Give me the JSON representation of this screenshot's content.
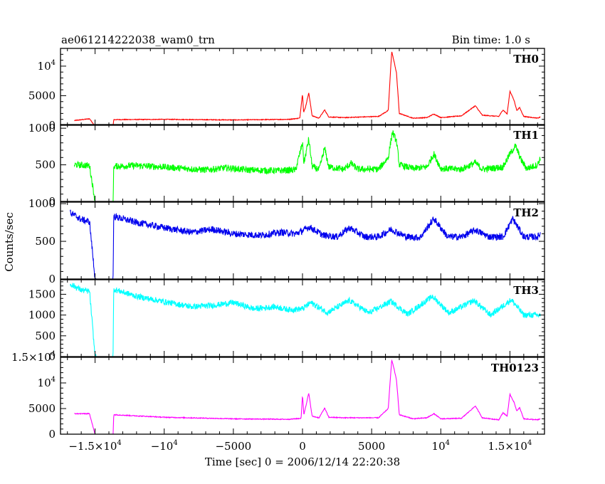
{
  "title_left": "ae061214222038_wam0_trn",
  "title_right": "Bin time: 1.0 s",
  "ylabel": "Counts/sec",
  "xlabel": "Time [sec] 0 = 2006/12/14 22:20:38",
  "chart_data": {
    "type": "line",
    "xlim": [
      -17500,
      17500
    ],
    "x_ticks": [
      {
        "value": -15000,
        "label": "−1.5×10",
        "exp": "4"
      },
      {
        "value": -10000,
        "label": "−10",
        "exp": "4"
      },
      {
        "value": -5000,
        "label": "−5000",
        "exp": ""
      },
      {
        "value": 0,
        "label": "0",
        "exp": ""
      },
      {
        "value": 5000,
        "label": "5000",
        "exp": ""
      },
      {
        "value": 10000,
        "label": "10",
        "exp": "4"
      },
      {
        "value": 15000,
        "label": "1.5×10",
        "exp": "4"
      }
    ],
    "panels": [
      {
        "name": "TH0",
        "color": "#ff0000",
        "ylim": [
          0,
          13000
        ],
        "noise": 60,
        "y_ticks": [
          {
            "value": 0,
            "label": "0",
            "exp": ""
          },
          {
            "value": 5000,
            "label": "5000",
            "exp": ""
          },
          {
            "value": 10000,
            "label": "10",
            "exp": "4"
          }
        ],
        "points": [
          [
            -16500,
            800
          ],
          [
            -15400,
            1100
          ],
          [
            -15000,
            -120
          ],
          [
            -14600,
            -120
          ],
          [
            -13700,
            -120
          ],
          [
            -13650,
            950
          ],
          [
            -10000,
            1000
          ],
          [
            -5000,
            900
          ],
          [
            -1000,
            1000
          ],
          [
            -200,
            1200
          ],
          [
            0,
            5300
          ],
          [
            80,
            2200
          ],
          [
            200,
            2900
          ],
          [
            450,
            5500
          ],
          [
            700,
            1600
          ],
          [
            1200,
            1200
          ],
          [
            1600,
            2600
          ],
          [
            1900,
            1400
          ],
          [
            3000,
            1300
          ],
          [
            5500,
            1500
          ],
          [
            6200,
            2500
          ],
          [
            6450,
            12500
          ],
          [
            6600,
            11000
          ],
          [
            6800,
            8800
          ],
          [
            7000,
            2000
          ],
          [
            8000,
            1200
          ],
          [
            9000,
            1300
          ],
          [
            9500,
            1900
          ],
          [
            10000,
            1300
          ],
          [
            11500,
            1600
          ],
          [
            12500,
            3300
          ],
          [
            13000,
            1700
          ],
          [
            14200,
            1500
          ],
          [
            14500,
            2600
          ],
          [
            14800,
            1900
          ],
          [
            15000,
            5800
          ],
          [
            15300,
            4200
          ],
          [
            15500,
            2500
          ],
          [
            15700,
            3000
          ],
          [
            16000,
            1500
          ],
          [
            17000,
            1200
          ],
          [
            17200,
            1400
          ]
        ]
      },
      {
        "name": "TH1",
        "color": "#00ff00",
        "ylim": [
          0,
          1050
        ],
        "noise": 45,
        "y_ticks": [
          {
            "value": 0,
            "label": "0",
            "exp": ""
          },
          {
            "value": 500,
            "label": "500",
            "exp": ""
          },
          {
            "value": 1000,
            "label": "1000",
            "exp": ""
          }
        ],
        "points": [
          [
            -16500,
            500
          ],
          [
            -15400,
            490
          ],
          [
            -15000,
            0
          ],
          [
            -14600,
            0
          ],
          [
            -13700,
            0
          ],
          [
            -13650,
            480
          ],
          [
            -12000,
            490
          ],
          [
            -10000,
            470
          ],
          [
            -7000,
            430
          ],
          [
            -5500,
            460
          ],
          [
            -4000,
            430
          ],
          [
            -2000,
            420
          ],
          [
            -500,
            430
          ],
          [
            0,
            800
          ],
          [
            100,
            520
          ],
          [
            450,
            850
          ],
          [
            700,
            480
          ],
          [
            1200,
            430
          ],
          [
            1600,
            730
          ],
          [
            1900,
            470
          ],
          [
            3000,
            440
          ],
          [
            3500,
            520
          ],
          [
            4000,
            440
          ],
          [
            5500,
            440
          ],
          [
            6200,
            600
          ],
          [
            6500,
            950
          ],
          [
            6800,
            820
          ],
          [
            7000,
            500
          ],
          [
            8000,
            450
          ],
          [
            9000,
            470
          ],
          [
            9500,
            650
          ],
          [
            10000,
            450
          ],
          [
            11500,
            440
          ],
          [
            12500,
            530
          ],
          [
            13000,
            440
          ],
          [
            14500,
            470
          ],
          [
            15000,
            650
          ],
          [
            15400,
            760
          ],
          [
            15800,
            570
          ],
          [
            16200,
            450
          ],
          [
            17000,
            500
          ],
          [
            17200,
            600
          ]
        ]
      },
      {
        "name": "TH2",
        "color": "#0000ee",
        "ylim": [
          0,
          1020
        ],
        "noise": 45,
        "y_ticks": [
          {
            "value": 0,
            "label": "0",
            "exp": ""
          },
          {
            "value": 500,
            "label": "500",
            "exp": ""
          },
          {
            "value": 1000,
            "label": "1000",
            "exp": ""
          }
        ],
        "points": [
          [
            -16800,
            880
          ],
          [
            -16000,
            790
          ],
          [
            -15400,
            760
          ],
          [
            -15000,
            0
          ],
          [
            -14600,
            0
          ],
          [
            -13700,
            0
          ],
          [
            -13650,
            830
          ],
          [
            -12000,
            750
          ],
          [
            -10000,
            680
          ],
          [
            -8000,
            620
          ],
          [
            -6500,
            660
          ],
          [
            -5000,
            600
          ],
          [
            -3000,
            580
          ],
          [
            -1500,
            620
          ],
          [
            -500,
            600
          ],
          [
            0,
            640
          ],
          [
            500,
            690
          ],
          [
            1500,
            580
          ],
          [
            2500,
            560
          ],
          [
            3400,
            680
          ],
          [
            4500,
            560
          ],
          [
            5500,
            560
          ],
          [
            6400,
            660
          ],
          [
            7500,
            560
          ],
          [
            8500,
            550
          ],
          [
            9500,
            800
          ],
          [
            10500,
            560
          ],
          [
            11500,
            560
          ],
          [
            12500,
            650
          ],
          [
            13500,
            560
          ],
          [
            14500,
            560
          ],
          [
            15200,
            800
          ],
          [
            16000,
            560
          ],
          [
            17000,
            560
          ],
          [
            17200,
            600
          ]
        ]
      },
      {
        "name": "TH3",
        "color": "#00ffff",
        "ylim": [
          0,
          1850
        ],
        "noise": 70,
        "y_ticks": [
          {
            "value": 0,
            "label": "0",
            "exp": ""
          },
          {
            "value": 500,
            "label": "500",
            "exp": ""
          },
          {
            "value": 1000,
            "label": "1000",
            "exp": ""
          },
          {
            "value": 1500,
            "label": "1500",
            "exp": ""
          }
        ],
        "points": [
          [
            -16800,
            1750
          ],
          [
            -16000,
            1600
          ],
          [
            -15400,
            1570
          ],
          [
            -15000,
            0
          ],
          [
            -14600,
            0
          ],
          [
            -13700,
            0
          ],
          [
            -13650,
            1620
          ],
          [
            -12000,
            1450
          ],
          [
            -10000,
            1320
          ],
          [
            -8000,
            1200
          ],
          [
            -6500,
            1230
          ],
          [
            -5000,
            1300
          ],
          [
            -3500,
            1150
          ],
          [
            -2000,
            1200
          ],
          [
            -1000,
            1130
          ],
          [
            0,
            1150
          ],
          [
            600,
            1300
          ],
          [
            1800,
            1060
          ],
          [
            3400,
            1350
          ],
          [
            4800,
            1050
          ],
          [
            6400,
            1330
          ],
          [
            7600,
            1020
          ],
          [
            9400,
            1450
          ],
          [
            10600,
            1050
          ],
          [
            12400,
            1350
          ],
          [
            13600,
            1000
          ],
          [
            15100,
            1370
          ],
          [
            16000,
            1000
          ],
          [
            17200,
            1000
          ]
        ]
      },
      {
        "name": "TH0123",
        "color": "#ff00ff",
        "ylim": [
          0,
          15000
        ],
        "noise": 80,
        "y_ticks": [
          {
            "value": 0,
            "label": "0",
            "exp": ""
          },
          {
            "value": 5000,
            "label": "5000",
            "exp": ""
          },
          {
            "value": 10000,
            "label": "10",
            "exp": "4"
          },
          {
            "value": 15000,
            "label": "1.5×10",
            "exp": "4"
          }
        ],
        "points": [
          [
            -16500,
            4000
          ],
          [
            -15400,
            4000
          ],
          [
            -15000,
            -80
          ],
          [
            -14600,
            -80
          ],
          [
            -13700,
            -80
          ],
          [
            -13650,
            3800
          ],
          [
            -10000,
            3300
          ],
          [
            -5000,
            3000
          ],
          [
            -1000,
            2900
          ],
          [
            -100,
            3100
          ],
          [
            0,
            7600
          ],
          [
            100,
            3800
          ],
          [
            450,
            8000
          ],
          [
            700,
            3500
          ],
          [
            1200,
            3200
          ],
          [
            1600,
            5100
          ],
          [
            1900,
            3300
          ],
          [
            3000,
            3200
          ],
          [
            5500,
            3200
          ],
          [
            6200,
            5000
          ],
          [
            6450,
            14500
          ],
          [
            6600,
            13000
          ],
          [
            6800,
            10500
          ],
          [
            7000,
            3800
          ],
          [
            8000,
            3000
          ],
          [
            9000,
            3200
          ],
          [
            9500,
            4000
          ],
          [
            10000,
            3000
          ],
          [
            11500,
            3100
          ],
          [
            12500,
            5500
          ],
          [
            13000,
            3200
          ],
          [
            14200,
            2800
          ],
          [
            14500,
            4200
          ],
          [
            14800,
            3500
          ],
          [
            15000,
            7800
          ],
          [
            15300,
            6200
          ],
          [
            15500,
            4500
          ],
          [
            15700,
            5200
          ],
          [
            16000,
            3000
          ],
          [
            17000,
            2800
          ],
          [
            17200,
            3000
          ]
        ]
      }
    ]
  }
}
